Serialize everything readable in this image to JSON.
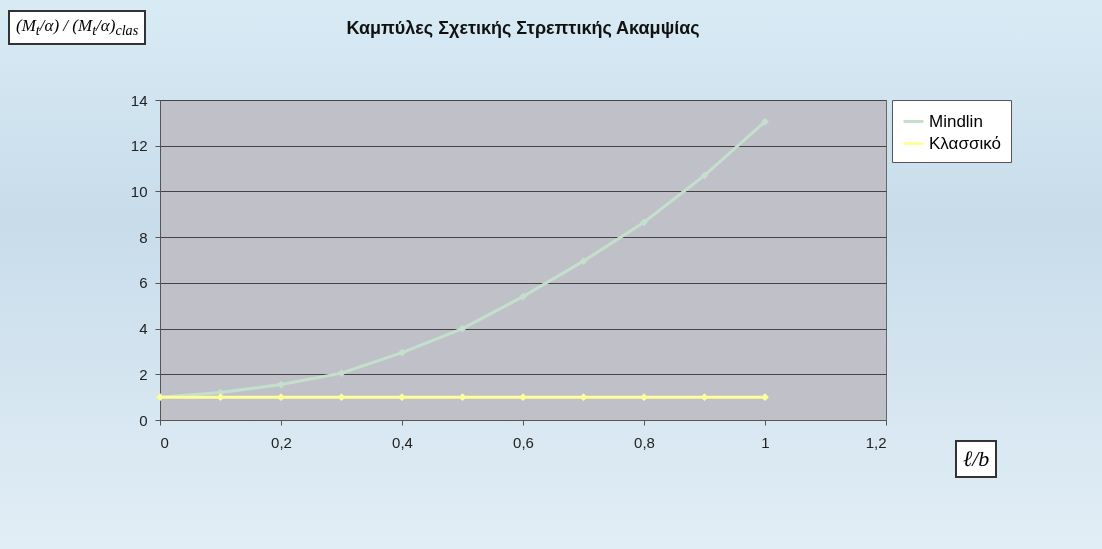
{
  "chart_data": {
    "type": "line",
    "title": "Καμπύλες Σχετικής Στρεπτικής Ακαμψίας",
    "xlabel": "ℓ/b",
    "ylabel": "(M$_{t}$/α) / (M$_{t}$/α)$_{clas}$",
    "x": [
      0,
      0.1,
      0.2,
      0.3,
      0.4,
      0.5,
      0.6,
      0.7,
      0.8,
      0.9,
      1
    ],
    "series": [
      {
        "name": "Mindlin",
        "color": "#c4e0cc",
        "values": [
          1,
          1.2,
          1.55,
          2.05,
          2.95,
          4.0,
          5.4,
          6.95,
          8.65,
          10.7,
          13.05
        ]
      },
      {
        "name": "Κλασσικό",
        "color": "#ffff99",
        "values": [
          1,
          1,
          1,
          1,
          1,
          1,
          1,
          1,
          1,
          1,
          1
        ]
      }
    ],
    "xlim": [
      0,
      1.2
    ],
    "xticks": [
      0,
      {
        "value": 0.2,
        "label": "0,2"
      },
      {
        "value": 0.4,
        "label": "0,4"
      },
      {
        "value": 0.6,
        "label": "0,6"
      },
      {
        "value": 0.8,
        "label": "0,8"
      },
      1,
      {
        "value": 1.2,
        "label": "1,2"
      }
    ],
    "ylim": [
      0,
      14
    ],
    "yticks": [
      0,
      2,
      4,
      6,
      8,
      10,
      12,
      14
    ],
    "grid": "y",
    "legend": "right",
    "marker": "diamond",
    "line_style": "solid"
  }
}
